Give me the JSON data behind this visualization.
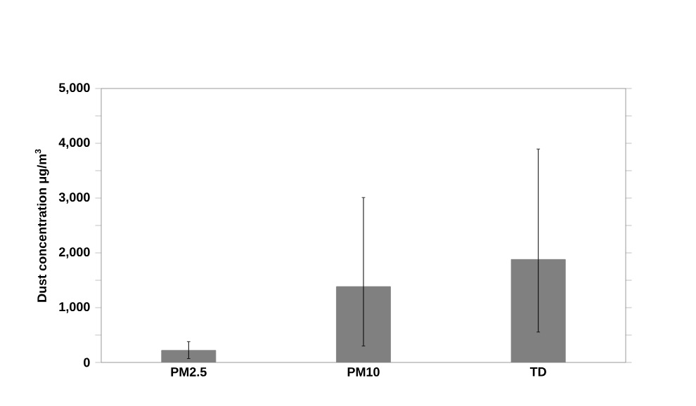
{
  "chart_data": {
    "type": "bar",
    "ylabel": "Dust concentration μg/m$^{3}$",
    "categories": [
      "PM2.5",
      "PM10",
      "TD"
    ],
    "values": [
      220,
      1385,
      1880
    ],
    "errors": [
      [
        70,
        380
      ],
      [
        300,
        3010
      ],
      [
        555,
        3895
      ]
    ],
    "color": "#808080",
    "ylim": [
      0,
      5000
    ],
    "yticks": [
      {
        "value": 0,
        "label": "0"
      },
      {
        "value": 500,
        "label": null
      },
      {
        "value": 1000,
        "label": "1,000"
      },
      {
        "value": 1500,
        "label": null
      },
      {
        "value": 2000,
        "label": "2,000"
      },
      {
        "value": 2500,
        "label": null
      },
      {
        "value": 3000,
        "label": "3,000"
      },
      {
        "value": 3500,
        "label": null
      },
      {
        "value": 4000,
        "label": "4,000"
      },
      {
        "value": 4500,
        "label": null
      },
      {
        "value": 5000,
        "label": "5,000"
      }
    ],
    "grid": false
  }
}
